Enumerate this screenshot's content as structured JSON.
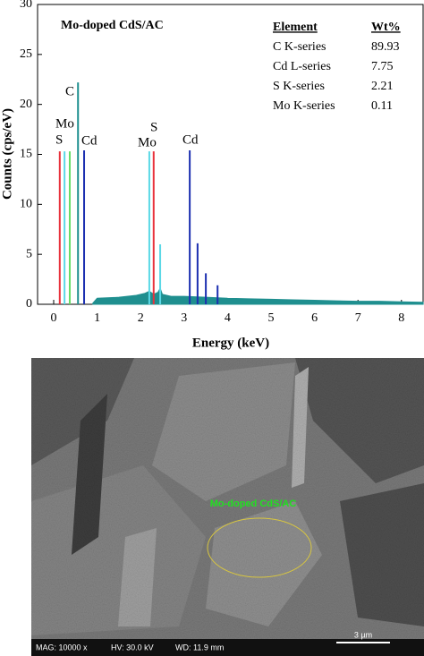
{
  "chart_data": {
    "type": "spectrum",
    "title": "Mo-doped CdS/AC",
    "xlabel": "Energy (keV)",
    "ylabel": "Counts (cps/eV)",
    "xlim": [
      0,
      8.52
    ],
    "ylim": [
      0,
      30
    ],
    "xticks": [
      0,
      1,
      2,
      3,
      4,
      5,
      6,
      7,
      8
    ],
    "yticks": [
      0,
      5,
      10,
      15,
      20,
      25,
      30
    ],
    "spectrum": {
      "color": "#1f8f8f",
      "x": [
        0.9,
        1.0,
        1.5,
        1.9,
        2.1,
        2.2,
        2.3,
        2.4,
        2.45,
        2.5,
        2.7,
        3.0,
        3.5,
        4.0,
        4.5,
        5.0,
        5.5,
        6.0,
        6.5,
        7.0,
        7.5,
        8.0,
        8.5
      ],
      "values": [
        0.1,
        0.6,
        0.7,
        0.9,
        1.1,
        1.3,
        1.0,
        1.2,
        1.6,
        1.0,
        0.8,
        0.8,
        0.7,
        0.6,
        0.55,
        0.5,
        0.45,
        0.4,
        0.35,
        0.3,
        0.3,
        0.25,
        0.2
      ]
    },
    "lines": {
      "x": [
        0.14,
        0.25,
        0.37,
        0.56,
        0.7,
        2.2,
        2.3,
        2.45,
        3.13,
        3.31,
        3.5,
        3.77
      ],
      "values": [
        15.3,
        15.3,
        15.3,
        22.2,
        15.4,
        15.3,
        15.3,
        6.0,
        15.4,
        6.1,
        3.1,
        1.9
      ],
      "colors": [
        "#e8323c",
        "#5ad8e6",
        "#66dd66",
        "#1f8f8f",
        "#1c2fb0",
        "#5ad8e6",
        "#e8323c",
        "#5ad8e6",
        "#1c2fb0",
        "#1c2fb0",
        "#1c2fb0",
        "#1c2fb0"
      ]
    },
    "annotations": [
      "S",
      "Mo",
      "C",
      "Cd",
      "S",
      "Mo",
      "Cd"
    ],
    "table": {
      "header": [
        "Element",
        "Wt%"
      ],
      "rows": [
        [
          "C K-series",
          "89.93"
        ],
        [
          "Cd L-series",
          "7.75"
        ],
        [
          "S K-series",
          "2.21"
        ],
        [
          "Mo K-series",
          "0.11"
        ]
      ]
    }
  },
  "image": {
    "label": "Mo-doped CdS/AC",
    "footer": [
      "MAG: 10000 x",
      "HV: 30.0 kV",
      "WD: 11.9 mm"
    ],
    "scale": "3 µm"
  }
}
